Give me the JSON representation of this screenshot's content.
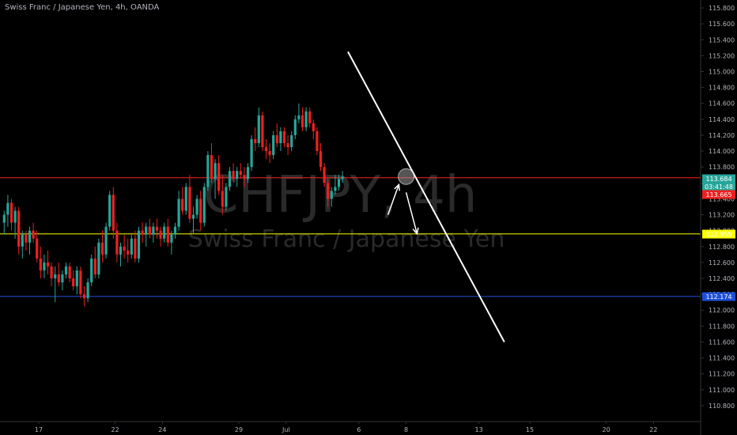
{
  "header": {
    "title": "Swiss Franc / Japanese Yen, 4h, OANDA"
  },
  "watermark": {
    "symbol": "CHFJPY, 4h",
    "description": "Swiss Franc / Japanese Yen"
  },
  "colors": {
    "up": "#26a69a",
    "down": "#ef1f1f",
    "resistance": "#ff2020",
    "support1": "#ffff00",
    "support2": "#1e4fd8",
    "trendline": "#ffffff",
    "axis_text": "#b2b5be",
    "axis_line": "#333333"
  },
  "chart_data": {
    "type": "candlestick",
    "symbol": "CHFJPY",
    "timeframe": "4h",
    "ylim": [
      110.6,
      115.9
    ],
    "y_ticks": [
      "115.800",
      "115.600",
      "115.400",
      "115.200",
      "115.000",
      "114.800",
      "114.600",
      "114.400",
      "114.200",
      "114.000",
      "113.800",
      "113.600",
      "113.400",
      "113.200",
      "113.000",
      "112.800",
      "112.600",
      "112.400",
      "112.200",
      "112.000",
      "111.800",
      "111.600",
      "111.400",
      "111.200",
      "111.000",
      "110.800"
    ],
    "x_ticks": [
      "17",
      "22",
      "24",
      "29",
      "Jul",
      "6",
      "8",
      "13",
      "15",
      "20",
      "22"
    ],
    "horizontal_lines": [
      {
        "name": "resistance",
        "price": 113.665,
        "color": "#ff2020"
      },
      {
        "name": "support",
        "price": 112.959,
        "color": "#ffff00"
      },
      {
        "name": "support",
        "price": 112.174,
        "color": "#1e4fd8"
      }
    ],
    "price_tags": [
      {
        "text": "113.684",
        "price": 113.684,
        "color": "#26a69a"
      },
      {
        "text": "03:41:48",
        "price": 113.58,
        "color": "#26a69a"
      },
      {
        "text": "113.665",
        "price": 113.665,
        "color": "#ef1f1f"
      },
      {
        "text": "112.959",
        "price": 112.959,
        "color": "#ffff00"
      },
      {
        "text": "112.174",
        "price": 112.174,
        "color": "#1e4fd8"
      }
    ],
    "trendline": {
      "start": {
        "bar": 95,
        "price": 115.25
      },
      "end": {
        "bar": 138,
        "price": 111.6
      }
    },
    "arrows": [
      {
        "from": {
          "bar": 106,
          "price": 113.2
        },
        "to": {
          "bar": 109,
          "price": 113.58
        }
      },
      {
        "from": {
          "bar": 111,
          "price": 113.48
        },
        "to": {
          "bar": 114,
          "price": 112.96
        }
      }
    ],
    "highlight": {
      "bar": 111,
      "price": 113.68
    },
    "candles": [
      [
        113.1,
        113.25,
        112.95,
        113.2
      ],
      [
        113.2,
        113.45,
        113.05,
        113.35
      ],
      [
        113.35,
        113.4,
        113.0,
        113.1
      ],
      [
        113.1,
        113.3,
        112.9,
        113.25
      ],
      [
        113.25,
        113.3,
        112.7,
        112.8
      ],
      [
        112.8,
        113.0,
        112.65,
        112.95
      ],
      [
        112.95,
        113.0,
        112.75,
        112.85
      ],
      [
        112.85,
        113.05,
        112.7,
        113.0
      ],
      [
        113.0,
        113.1,
        112.85,
        112.9
      ],
      [
        112.9,
        113.0,
        112.6,
        112.65
      ],
      [
        112.65,
        112.8,
        112.4,
        112.5
      ],
      [
        112.5,
        112.7,
        112.4,
        112.6
      ],
      [
        112.6,
        112.75,
        112.45,
        112.55
      ],
      [
        112.55,
        112.6,
        112.3,
        112.4
      ],
      [
        112.4,
        112.55,
        112.1,
        112.45
      ],
      [
        112.45,
        112.6,
        112.3,
        112.35
      ],
      [
        112.35,
        112.5,
        112.25,
        112.45
      ],
      [
        112.45,
        112.6,
        112.4,
        112.55
      ],
      [
        112.55,
        112.6,
        112.35,
        112.4
      ],
      [
        112.4,
        112.5,
        112.25,
        112.3
      ],
      [
        112.3,
        112.55,
        112.2,
        112.5
      ],
      [
        112.5,
        112.55,
        112.15,
        112.2
      ],
      [
        112.2,
        112.3,
        112.05,
        112.15
      ],
      [
        112.15,
        112.4,
        112.1,
        112.35
      ],
      [
        112.35,
        112.7,
        112.3,
        112.65
      ],
      [
        112.65,
        112.8,
        112.4,
        112.45
      ],
      [
        112.45,
        112.9,
        112.4,
        112.85
      ],
      [
        112.85,
        113.0,
        112.6,
        112.7
      ],
      [
        112.7,
        113.1,
        112.65,
        113.05
      ],
      [
        113.05,
        113.5,
        113.0,
        113.45
      ],
      [
        113.45,
        113.55,
        112.9,
        113.0
      ],
      [
        113.0,
        113.1,
        112.6,
        112.7
      ],
      [
        112.7,
        112.85,
        112.55,
        112.8
      ],
      [
        112.8,
        112.95,
        112.65,
        112.75
      ],
      [
        112.75,
        112.9,
        112.6,
        112.7
      ],
      [
        112.7,
        112.95,
        112.65,
        112.9
      ],
      [
        112.9,
        113.0,
        112.6,
        112.65
      ],
      [
        112.65,
        113.05,
        112.6,
        113.0
      ],
      [
        113.0,
        113.1,
        112.85,
        112.95
      ],
      [
        112.95,
        113.1,
        112.8,
        113.05
      ],
      [
        113.05,
        113.15,
        112.9,
        112.95
      ],
      [
        112.95,
        113.1,
        112.85,
        113.05
      ],
      [
        113.05,
        113.15,
        112.9,
        113.0
      ],
      [
        113.0,
        113.05,
        112.8,
        112.9
      ],
      [
        112.9,
        113.1,
        112.85,
        113.05
      ],
      [
        113.05,
        113.15,
        112.8,
        112.85
      ],
      [
        112.85,
        113.0,
        112.7,
        112.95
      ],
      [
        112.95,
        113.1,
        112.9,
        113.05
      ],
      [
        113.05,
        113.5,
        113.0,
        113.4
      ],
      [
        113.4,
        113.55,
        113.2,
        113.25
      ],
      [
        113.25,
        113.6,
        113.2,
        113.55
      ],
      [
        113.55,
        113.7,
        113.1,
        113.15
      ],
      [
        113.15,
        113.3,
        112.95,
        113.2
      ],
      [
        113.2,
        113.45,
        113.15,
        113.4
      ],
      [
        113.4,
        113.5,
        113.0,
        113.1
      ],
      [
        113.1,
        113.6,
        113.05,
        113.55
      ],
      [
        113.55,
        114.0,
        113.5,
        113.95
      ],
      [
        113.95,
        114.1,
        113.6,
        113.65
      ],
      [
        113.65,
        113.9,
        113.4,
        113.85
      ],
      [
        113.85,
        113.95,
        113.45,
        113.5
      ],
      [
        113.5,
        113.7,
        113.2,
        113.3
      ],
      [
        113.3,
        113.6,
        113.25,
        113.55
      ],
      [
        113.55,
        113.8,
        113.5,
        113.75
      ],
      [
        113.75,
        113.85,
        113.6,
        113.65
      ],
      [
        113.65,
        113.8,
        113.55,
        113.75
      ],
      [
        113.75,
        113.85,
        113.65,
        113.7
      ],
      [
        113.7,
        113.8,
        113.55,
        113.65
      ],
      [
        113.65,
        113.85,
        113.6,
        113.8
      ],
      [
        113.8,
        114.2,
        113.75,
        114.15
      ],
      [
        114.15,
        114.3,
        114.0,
        114.1
      ],
      [
        114.1,
        114.55,
        114.05,
        114.45
      ],
      [
        114.45,
        114.5,
        114.0,
        114.05
      ],
      [
        114.05,
        114.15,
        113.9,
        114.0
      ],
      [
        114.0,
        114.1,
        113.85,
        113.95
      ],
      [
        113.95,
        114.25,
        113.9,
        114.2
      ],
      [
        114.2,
        114.35,
        114.05,
        114.1
      ],
      [
        114.1,
        114.3,
        114.0,
        114.25
      ],
      [
        114.25,
        114.3,
        114.05,
        114.1
      ],
      [
        114.1,
        114.2,
        113.95,
        114.05
      ],
      [
        114.05,
        114.25,
        114.0,
        114.2
      ],
      [
        114.2,
        114.45,
        114.15,
        114.4
      ],
      [
        114.4,
        114.6,
        114.35,
        114.45
      ],
      [
        114.45,
        114.55,
        114.25,
        114.3
      ],
      [
        114.3,
        114.55,
        114.25,
        114.5
      ],
      [
        114.5,
        114.55,
        114.3,
        114.35
      ],
      [
        114.35,
        114.4,
        114.15,
        114.25
      ],
      [
        114.25,
        114.3,
        113.95,
        114.0
      ],
      [
        114.0,
        114.1,
        113.75,
        113.8
      ],
      [
        113.8,
        113.85,
        113.55,
        113.6
      ],
      [
        113.6,
        113.65,
        113.3,
        113.4
      ],
      [
        113.4,
        113.55,
        113.3,
        113.5
      ],
      [
        113.5,
        113.7,
        113.45,
        113.55
      ],
      [
        113.55,
        113.7,
        113.5,
        113.65
      ],
      [
        113.65,
        113.75,
        113.6,
        113.68
      ]
    ]
  }
}
